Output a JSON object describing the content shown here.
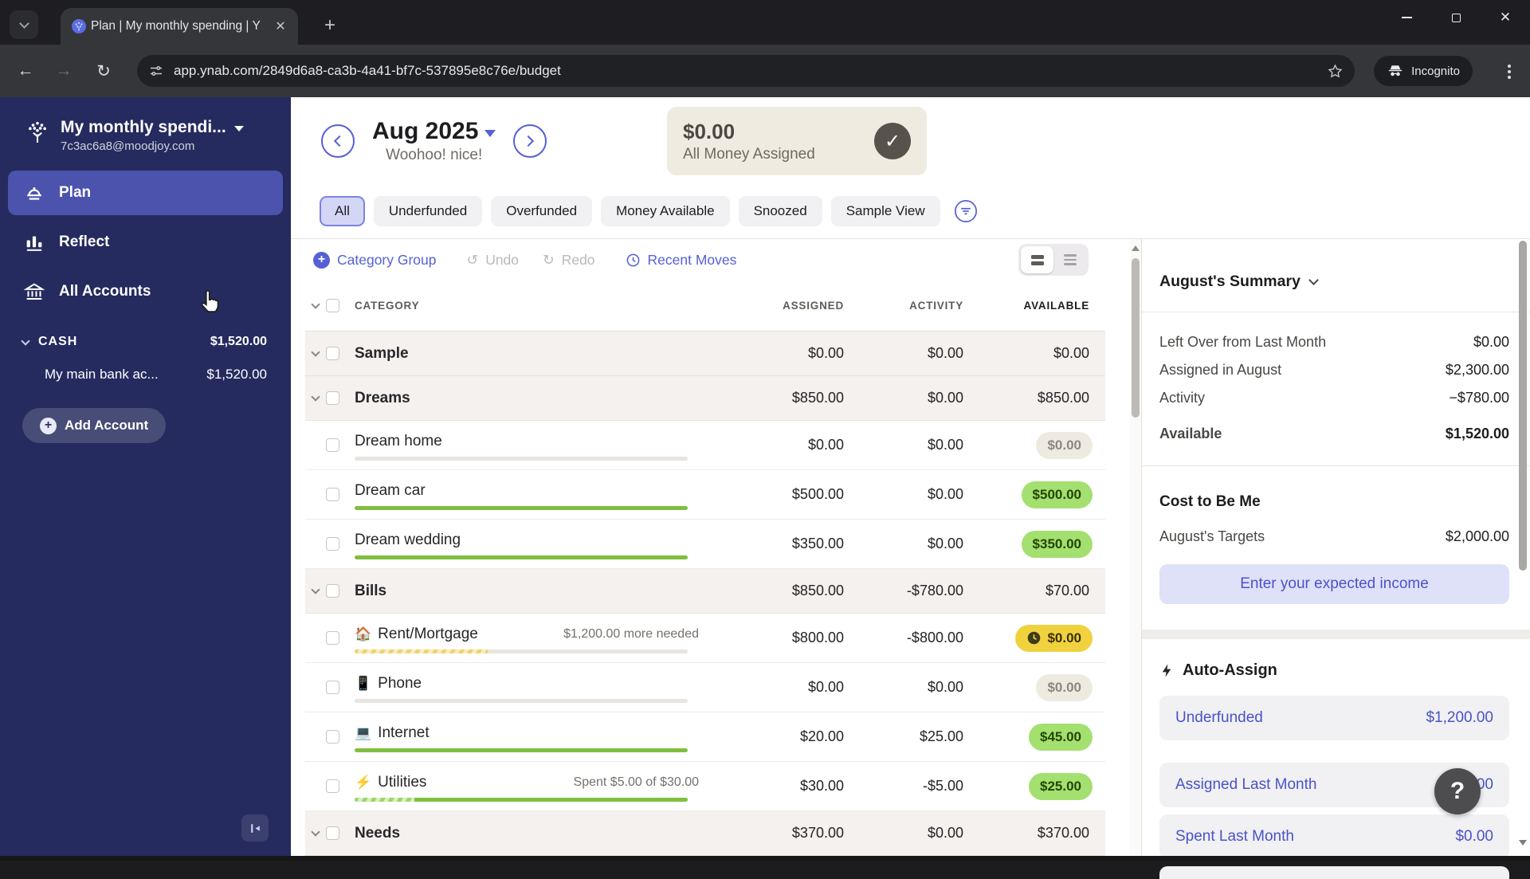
{
  "browser": {
    "tab_title": "Plan | My monthly spending | Y",
    "url": "app.ynab.com/2849d6a8-ca3b-4a41-bf7c-537895e8c76e/budget",
    "incognito_label": "Incognito"
  },
  "sidebar": {
    "budget_name": "My monthly spendi...",
    "email": "7c3ac6a8@moodjoy.com",
    "nav": [
      {
        "id": "plan",
        "label": "Plan",
        "selected": true
      },
      {
        "id": "reflect",
        "label": "Reflect",
        "selected": false
      },
      {
        "id": "all-accounts",
        "label": "All Accounts",
        "selected": false
      }
    ],
    "group_label": "CASH",
    "group_amount": "$1,520.00",
    "accounts": [
      {
        "name": "My main bank ac...",
        "amount": "$1,520.00"
      }
    ],
    "add_account_label": "Add Account"
  },
  "header": {
    "month": "Aug 2025",
    "subtitle": "Woohoo! nice!",
    "pill_amount": "$0.00",
    "pill_label": "All Money Assigned"
  },
  "filters": [
    {
      "label": "All",
      "selected": true
    },
    {
      "label": "Underfunded",
      "selected": false
    },
    {
      "label": "Overfunded",
      "selected": false
    },
    {
      "label": "Money Available",
      "selected": false
    },
    {
      "label": "Snoozed",
      "selected": false
    },
    {
      "label": "Sample View",
      "selected": false
    }
  ],
  "toolbar": {
    "add_group_label": "Category Group",
    "undo_label": "Undo",
    "redo_label": "Redo",
    "recent_moves_label": "Recent Moves"
  },
  "table": {
    "headers": {
      "category": "CATEGORY",
      "assigned": "ASSIGNED",
      "activity": "ACTIVITY",
      "available": "AVAILABLE"
    },
    "rows": [
      {
        "type": "group",
        "name": "Sample",
        "assigned": "$0.00",
        "activity": "$0.00",
        "available": "$0.00"
      },
      {
        "type": "group",
        "name": "Dreams",
        "assigned": "$850.00",
        "activity": "$0.00",
        "available": "$850.00"
      },
      {
        "type": "category",
        "name": "Dream home",
        "icon": "",
        "note": "",
        "assigned": "$0.00",
        "activity": "$0.00",
        "available": "$0.00",
        "pill": "gray",
        "progress": {
          "fill": "none",
          "pct": 0,
          "rest": "gray"
        }
      },
      {
        "type": "category",
        "name": "Dream car",
        "icon": "",
        "note": "",
        "assigned": "$500.00",
        "activity": "$0.00",
        "available": "$500.00",
        "pill": "green",
        "progress": {
          "fill": "solid-green",
          "pct": 100,
          "rest": "none"
        }
      },
      {
        "type": "category",
        "name": "Dream wedding",
        "icon": "",
        "note": "",
        "assigned": "$350.00",
        "activity": "$0.00",
        "available": "$350.00",
        "pill": "green",
        "progress": {
          "fill": "solid-green",
          "pct": 100,
          "rest": "none"
        }
      },
      {
        "type": "group",
        "name": "Bills",
        "assigned": "$850.00",
        "activity": "-$780.00",
        "available": "$70.00"
      },
      {
        "type": "category",
        "name": "Rent/Mortgage",
        "icon": "🏠",
        "note": "$1,200.00 more needed",
        "assigned": "$800.00",
        "activity": "-$800.00",
        "available": "$0.00",
        "pill": "yellow",
        "progress": {
          "fill": "striped-yellow",
          "pct": 40,
          "rest": "gray"
        }
      },
      {
        "type": "category",
        "name": "Phone",
        "icon": "📱",
        "note": "",
        "assigned": "$0.00",
        "activity": "$0.00",
        "available": "$0.00",
        "pill": "gray",
        "progress": {
          "fill": "none",
          "pct": 0,
          "rest": "gray"
        }
      },
      {
        "type": "category",
        "name": "Internet",
        "icon": "💻",
        "note": "",
        "assigned": "$20.00",
        "activity": "$25.00",
        "available": "$45.00",
        "pill": "green",
        "progress": {
          "fill": "solid-green",
          "pct": 100,
          "rest": "none"
        }
      },
      {
        "type": "category",
        "name": "Utilities",
        "icon": "⚡",
        "note": "Spent $5.00 of $30.00",
        "assigned": "$30.00",
        "activity": "-$5.00",
        "available": "$25.00",
        "pill": "green",
        "progress": {
          "fill": "striped-green",
          "pct": 18,
          "rest": "green"
        }
      },
      {
        "type": "group",
        "name": "Needs",
        "assigned": "$370.00",
        "activity": "$0.00",
        "available": "$370.00"
      }
    ]
  },
  "summary": {
    "title": "August's Summary",
    "rows": [
      {
        "label": "Left Over from Last Month",
        "value": "$0.00"
      },
      {
        "label": "Assigned in August",
        "value": "$2,300.00"
      },
      {
        "label": "Activity",
        "value": "−$780.00"
      }
    ],
    "available_label": "Available",
    "available_value": "$1,520.00",
    "cost_title": "Cost to Be Me",
    "targets_label": "August's Targets",
    "targets_value": "$2,000.00",
    "income_button_label": "Enter your expected income"
  },
  "auto_assign": {
    "title": "Auto-Assign",
    "rows": [
      {
        "label": "Underfunded",
        "value": "$1,200.00"
      },
      {
        "label": "Assigned Last Month",
        "value": "$0.00"
      },
      {
        "label": "Spent Last Month",
        "value": "$0.00"
      }
    ]
  },
  "help_label": "?",
  "colors": {
    "accent": "#5560d6",
    "sidebar": "#252b5e",
    "green_pill": "#a3e06f",
    "yellow_pill": "#f0d23f",
    "assigned_pill_bg": "#f0ebe0",
    "group_row_bg": "#f4f1ee"
  }
}
